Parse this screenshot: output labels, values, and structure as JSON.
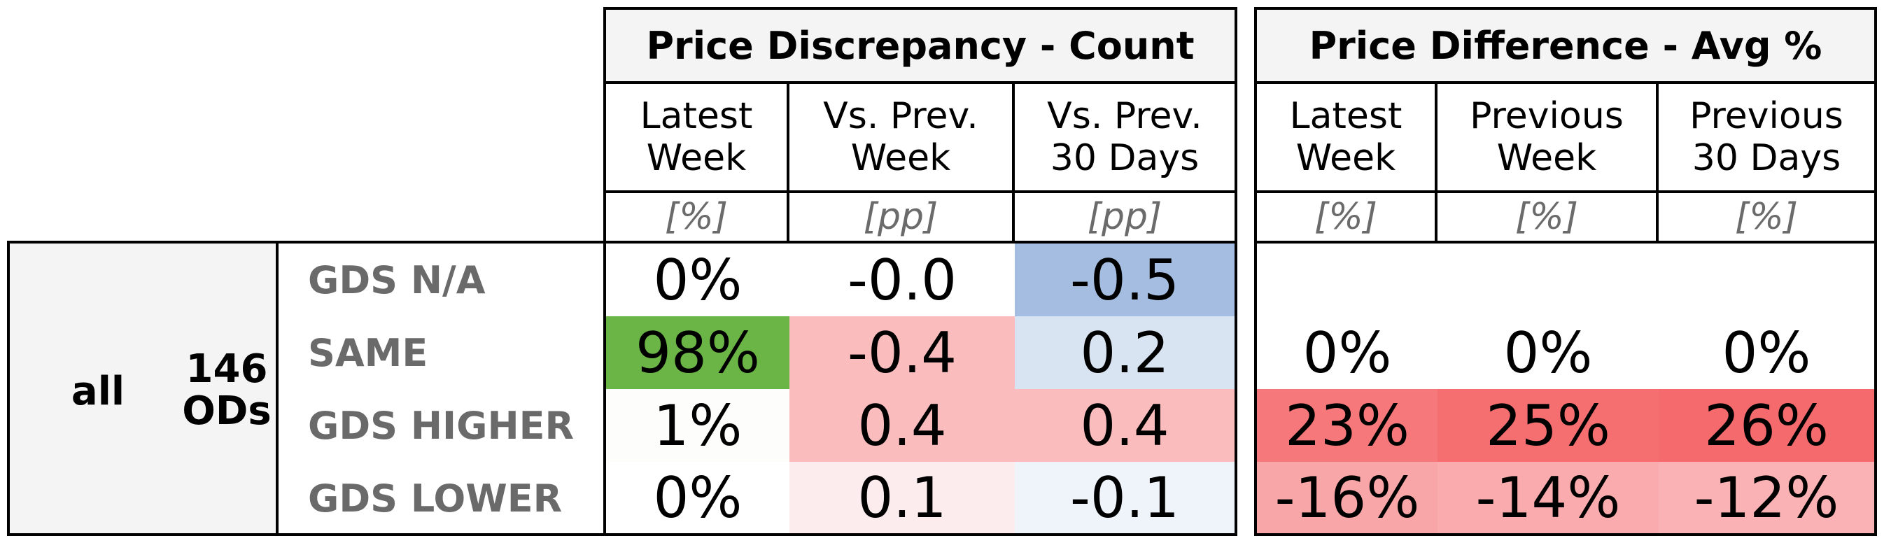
{
  "chart_data": {
    "type": "table",
    "group": {
      "label": "all",
      "count": "146\nODs"
    },
    "rows": [
      "GDS N/A",
      "SAME",
      "GDS HIGHER",
      "GDS LOWER"
    ],
    "panels": [
      {
        "title": "Price Discrepancy - Count",
        "columns": [
          {
            "header": "Latest\nWeek",
            "unit": "[%]"
          },
          {
            "header": "Vs. Prev.\nWeek",
            "unit": "[pp]"
          },
          {
            "header": "Vs. Prev.\n30 Days",
            "unit": "[pp]"
          }
        ],
        "cells": [
          [
            {
              "text": "0%",
              "color": "#ffffff"
            },
            {
              "text": "-0.0",
              "color": "#ffffff"
            },
            {
              "text": "-0.5",
              "color": "#a4bde0"
            }
          ],
          [
            {
              "text": "98%",
              "color": "#6bb446"
            },
            {
              "text": "-0.4",
              "color": "#fbbcbe"
            },
            {
              "text": "0.2",
              "color": "#d9e4f2"
            }
          ],
          [
            {
              "text": "1%",
              "color": "#fdfdfb"
            },
            {
              "text": "0.4",
              "color": "#fbbcbe"
            },
            {
              "text": "0.4",
              "color": "#fbbcbe"
            }
          ],
          [
            {
              "text": "0%",
              "color": "#ffffff"
            },
            {
              "text": "0.1",
              "color": "#fdeced"
            },
            {
              "text": "-0.1",
              "color": "#eff3fa"
            }
          ]
        ]
      },
      {
        "title": "Price Difference - Avg %",
        "columns": [
          {
            "header": "Latest\nWeek",
            "unit": "[%]"
          },
          {
            "header": "Previous\nWeek",
            "unit": "[%]"
          },
          {
            "header": "Previous\n30 Days",
            "unit": "[%]"
          }
        ],
        "cells": [
          [
            {
              "text": "",
              "color": "#ffffff"
            },
            {
              "text": "",
              "color": "#ffffff"
            },
            {
              "text": "",
              "color": "#ffffff"
            }
          ],
          [
            {
              "text": "0%",
              "color": "#ffffff"
            },
            {
              "text": "0%",
              "color": "#ffffff"
            },
            {
              "text": "0%",
              "color": "#ffffff"
            }
          ],
          [
            {
              "text": "23%",
              "color": "#f7787a"
            },
            {
              "text": "25%",
              "color": "#f56e70"
            },
            {
              "text": "26%",
              "color": "#f56a6c"
            }
          ],
          [
            {
              "text": "-16%",
              "color": "#f9a6a8"
            },
            {
              "text": "-14%",
              "color": "#faabad"
            },
            {
              "text": "-12%",
              "color": "#fbb2b4"
            }
          ]
        ]
      }
    ]
  }
}
